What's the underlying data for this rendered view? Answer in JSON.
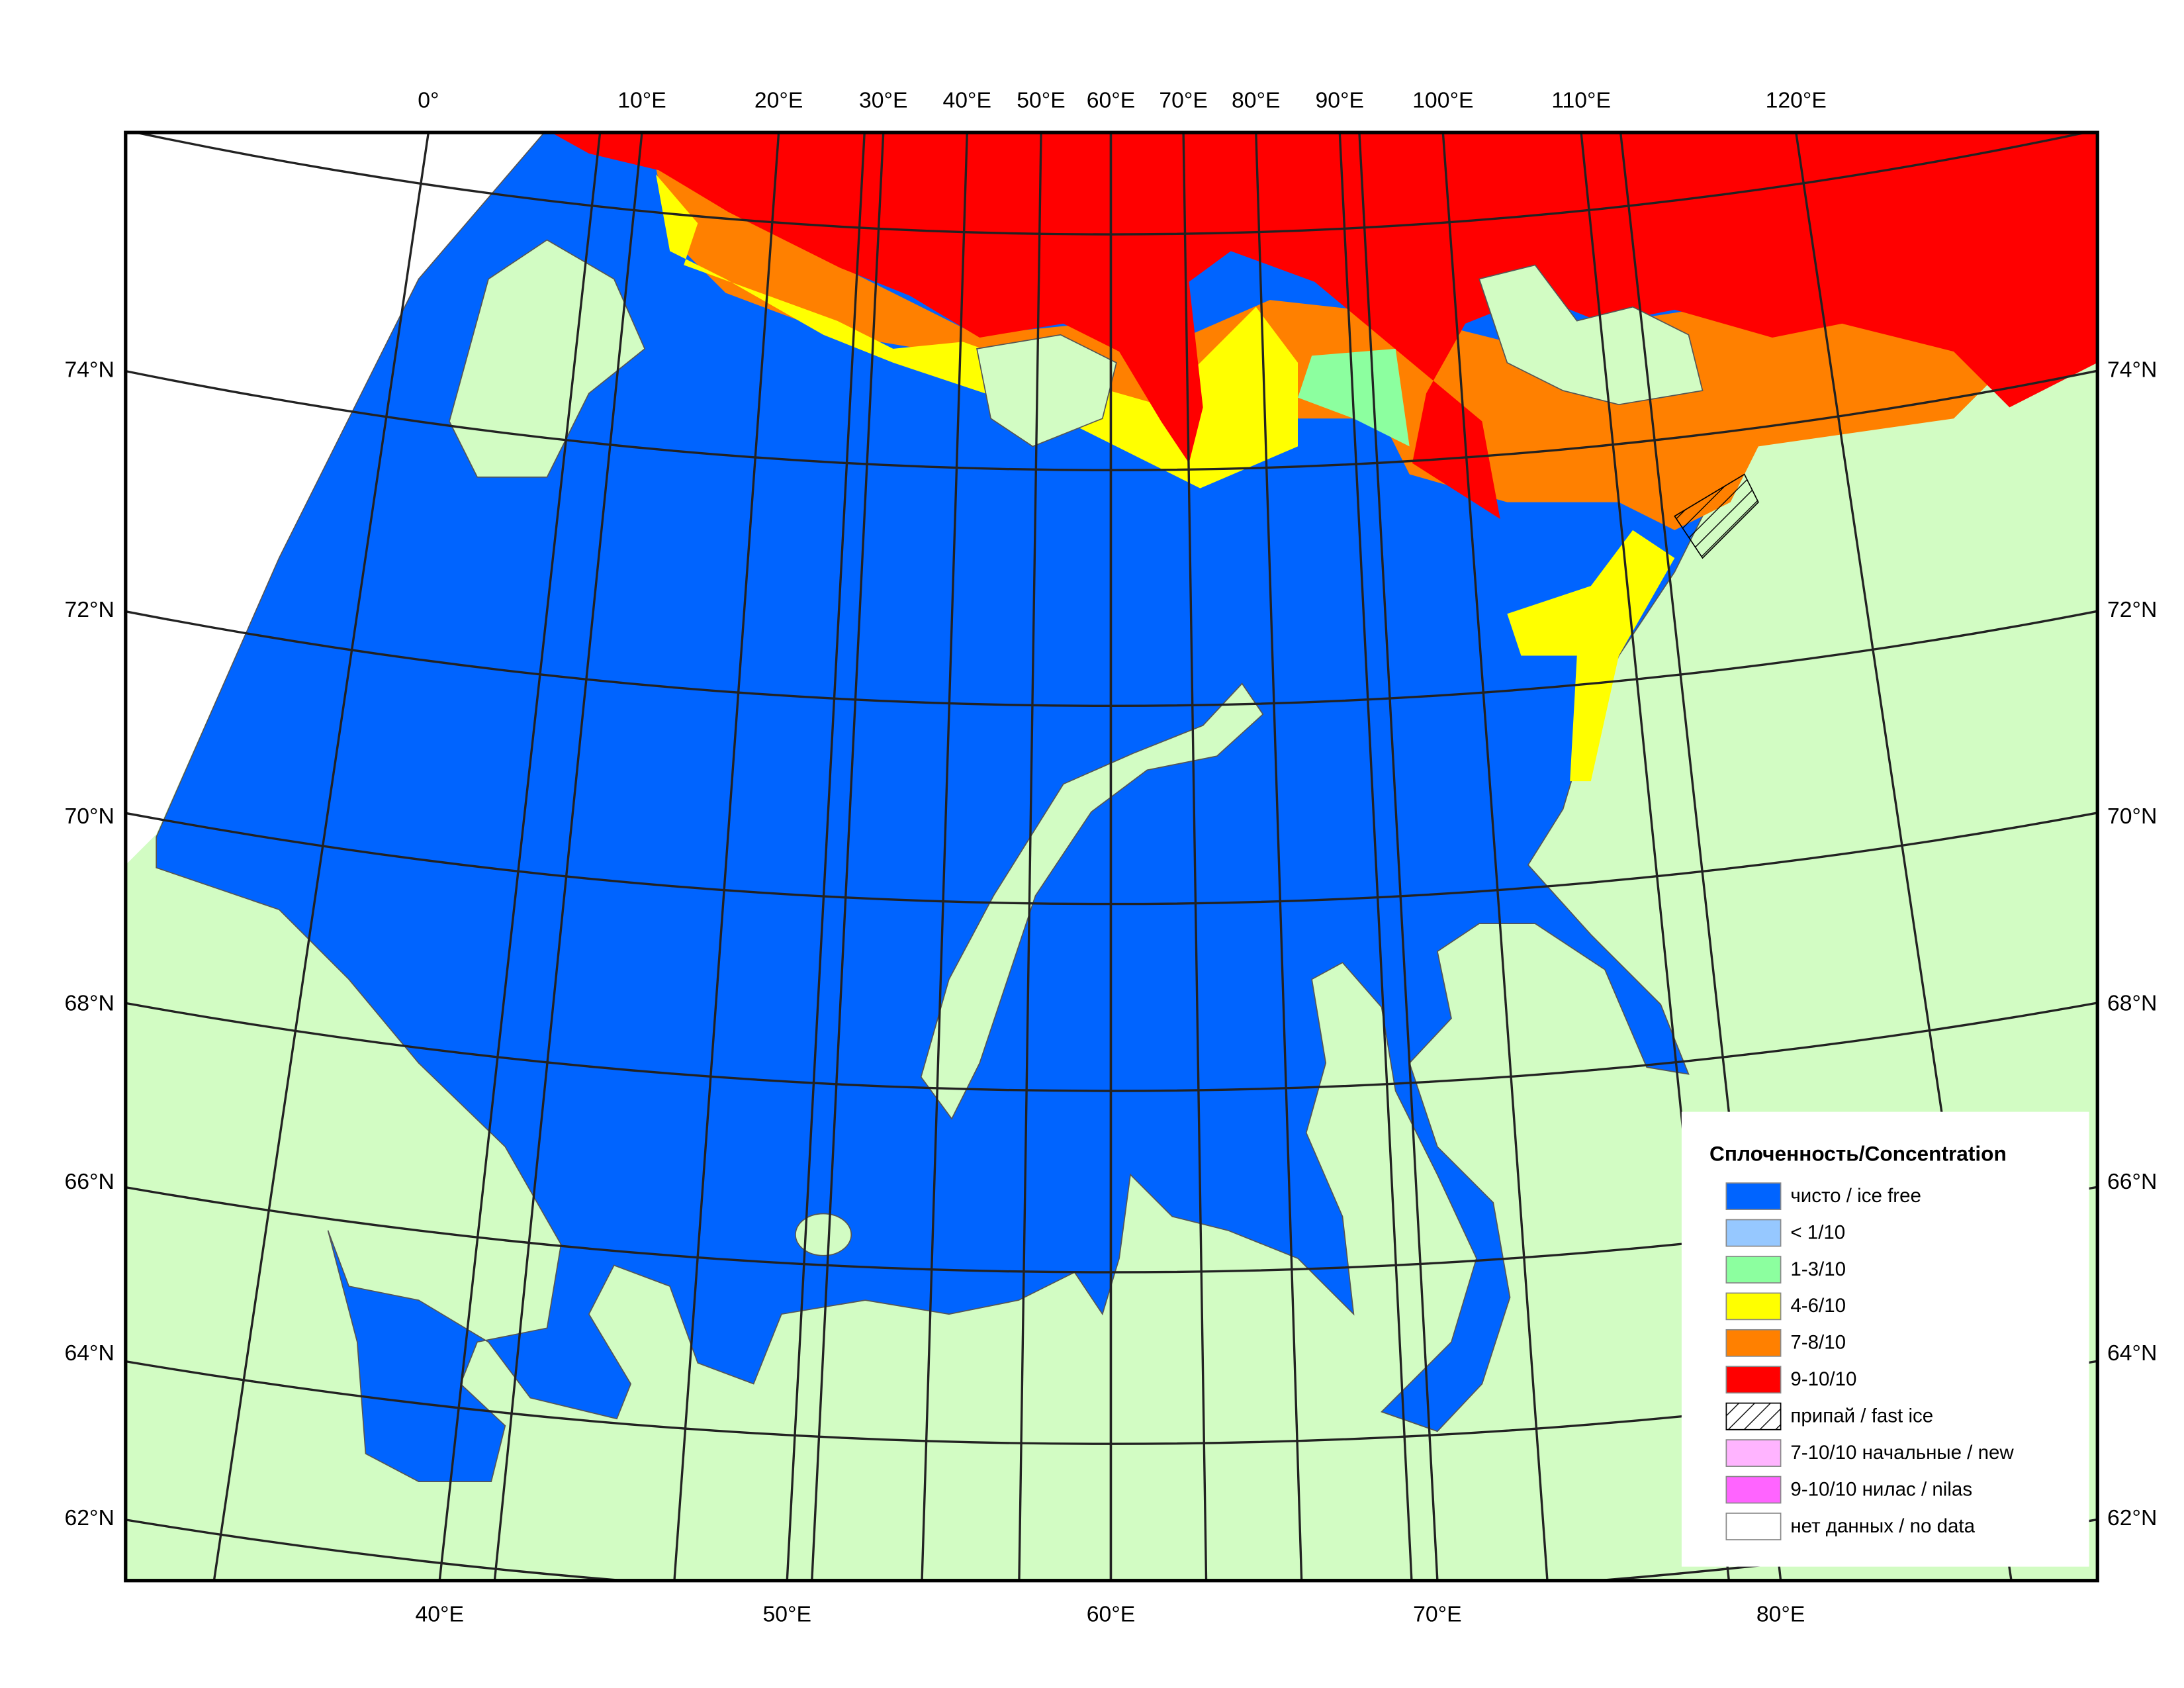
{
  "map": {
    "top_longitude_labels": [
      "0°",
      "10°E",
      "20°E",
      "30°E",
      "40°E",
      "50°E",
      "60°E",
      "70°E",
      "80°E",
      "90°E",
      "100°E",
      "110°E",
      "120°E"
    ],
    "left_latitude_labels": [
      "74°N",
      "72°N",
      "70°N",
      "68°N",
      "66°N",
      "64°N",
      "62°N"
    ],
    "right_latitude_labels": [
      "74°N",
      "72°N",
      "70°N",
      "68°N",
      "66°N",
      "64°N",
      "62°N"
    ],
    "bottom_longitude_labels": [
      "40°E",
      "50°E",
      "60°E",
      "70°E",
      "80°E"
    ],
    "legend": {
      "title": "Сплоченность/Concentration",
      "items": [
        {
          "label": "чисто / ice free",
          "color": "#0064ff"
        },
        {
          "label": "< 1/10",
          "color": "#96c8ff"
        },
        {
          "label": "1-3/10",
          "color": "#8cff9f"
        },
        {
          "label": "4-6/10",
          "color": "#ffff00"
        },
        {
          "label": "7-8/10",
          "color": "#ff8000"
        },
        {
          "label": "9-10/10",
          "color": "#ff0000"
        },
        {
          "label": "припай / fast ice",
          "color": "#ffffff"
        },
        {
          "label": "7-10/10 начальные / new",
          "color": "#ffb4ff"
        },
        {
          "label": "9-10/10 нилас / nilas",
          "color": "#ff64ff"
        },
        {
          "label": "нет данных / no data",
          "color": "#ffffff"
        }
      ]
    }
  }
}
